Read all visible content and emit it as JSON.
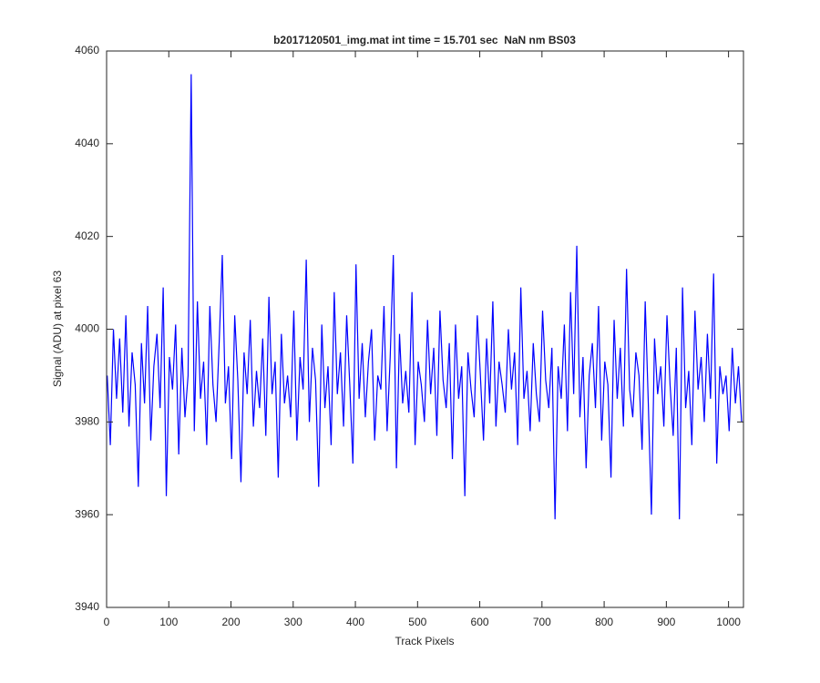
{
  "chart_data": {
    "type": "line",
    "title": "b2017120501_img.mat int time = 15.701 sec  NaN nm BS03",
    "xlabel": "Track Pixels",
    "ylabel": "Signal (ADU) at pixel 63",
    "color": "#0000ff",
    "xlim": [
      0,
      1024
    ],
    "xticks": [
      0,
      100,
      200,
      300,
      400,
      500,
      600,
      700,
      800,
      900,
      1000
    ],
    "ylim": [
      3940,
      4060
    ],
    "yticks": [
      3940,
      3960,
      3980,
      4000,
      4020,
      4040,
      4060
    ],
    "x": [
      1,
      6,
      11,
      16,
      21,
      26,
      31,
      36,
      41,
      46,
      51,
      56,
      61,
      66,
      71,
      76,
      81,
      86,
      91,
      96,
      101,
      106,
      111,
      116,
      121,
      126,
      131,
      136,
      141,
      146,
      151,
      156,
      161,
      166,
      171,
      176,
      181,
      186,
      191,
      196,
      201,
      206,
      211,
      216,
      221,
      226,
      231,
      236,
      241,
      246,
      251,
      256,
      261,
      266,
      271,
      276,
      281,
      286,
      291,
      296,
      301,
      306,
      311,
      316,
      321,
      326,
      331,
      336,
      341,
      346,
      351,
      356,
      361,
      366,
      371,
      376,
      381,
      386,
      391,
      396,
      401,
      406,
      411,
      416,
      421,
      426,
      431,
      436,
      441,
      446,
      451,
      456,
      461,
      466,
      471,
      476,
      481,
      486,
      491,
      496,
      501,
      506,
      511,
      516,
      521,
      526,
      531,
      536,
      541,
      546,
      551,
      556,
      561,
      566,
      571,
      576,
      581,
      586,
      591,
      596,
      601,
      606,
      611,
      616,
      621,
      626,
      631,
      636,
      641,
      646,
      651,
      656,
      661,
      666,
      671,
      676,
      681,
      686,
      691,
      696,
      701,
      706,
      711,
      716,
      721,
      726,
      731,
      736,
      741,
      746,
      751,
      756,
      761,
      766,
      771,
      776,
      781,
      786,
      791,
      796,
      801,
      806,
      811,
      816,
      821,
      826,
      831,
      836,
      841,
      846,
      851,
      856,
      861,
      866,
      871,
      876,
      881,
      886,
      891,
      896,
      901,
      906,
      911,
      916,
      921,
      926,
      931,
      936,
      941,
      946,
      951,
      956,
      961,
      966,
      971,
      976,
      981,
      986,
      991,
      996,
      1001,
      1006,
      1011,
      1016,
      1021
    ],
    "values": [
      3990,
      3975,
      4000,
      3985,
      3998,
      3982,
      4003,
      3979,
      3995,
      3988,
      3966,
      3997,
      3984,
      4005,
      3976,
      3992,
      3999,
      3983,
      4009,
      3964,
      3994,
      3987,
      4001,
      3973,
      3996,
      3981,
      3990,
      4055,
      3978,
      4006,
      3985,
      3993,
      3975,
      4005,
      3988,
      3980,
      3997,
      4016,
      3984,
      3992,
      3972,
      4003,
      3989,
      3967,
      3995,
      3986,
      4002,
      3979,
      3991,
      3983,
      3998,
      3977,
      4007,
      3986,
      3993,
      3968,
      3999,
      3984,
      3990,
      3981,
      4004,
      3976,
      3994,
      3987,
      4015,
      3980,
      3996,
      3989,
      3966,
      4001,
      3983,
      3992,
      3975,
      4008,
      3986,
      3995,
      3979,
      4003,
      3988,
      3971,
      4014,
      3985,
      3997,
      3981,
      3993,
      4000,
      3976,
      3990,
      3987,
      4005,
      3978,
      3994,
      4016,
      3970,
      3999,
      3984,
      3991,
      3982,
      4008,
      3975,
      3993,
      3988,
      3980,
      4002,
      3986,
      3996,
      3977,
      4004,
      3989,
      3983,
      3997,
      3972,
      4001,
      3985,
      3992,
      3964,
      3995,
      3987,
      3981,
      4003,
      3990,
      3976,
      3998,
      3984,
      4006,
      3979,
      3993,
      3988,
      3982,
      4000,
      3987,
      3995,
      3975,
      4009,
      3985,
      3991,
      3978,
      3997,
      3986,
      3980,
      4004,
      3989,
      3983,
      3996,
      3959,
      3992,
      3985,
      4001,
      3978,
      4008,
      3986,
      4018,
      3981,
      3994,
      3970,
      3990,
      3997,
      3983,
      4005,
      3976,
      3993,
      3988,
      3968,
      4002,
      3985,
      3996,
      3979,
      4013,
      3987,
      3981,
      3995,
      3990,
      3974,
      4006,
      3984,
      3960,
      3998,
      3986,
      3992,
      3979,
      4003,
      3988,
      3977,
      3996,
      3959,
      4009,
      3983,
      3991,
      3975,
      4004,
      3987,
      3994,
      3980,
      3999,
      3985,
      4012,
      3971,
      3992,
      3986,
      3990,
      3978,
      3996,
      3984,
      3992,
      3980
    ]
  }
}
